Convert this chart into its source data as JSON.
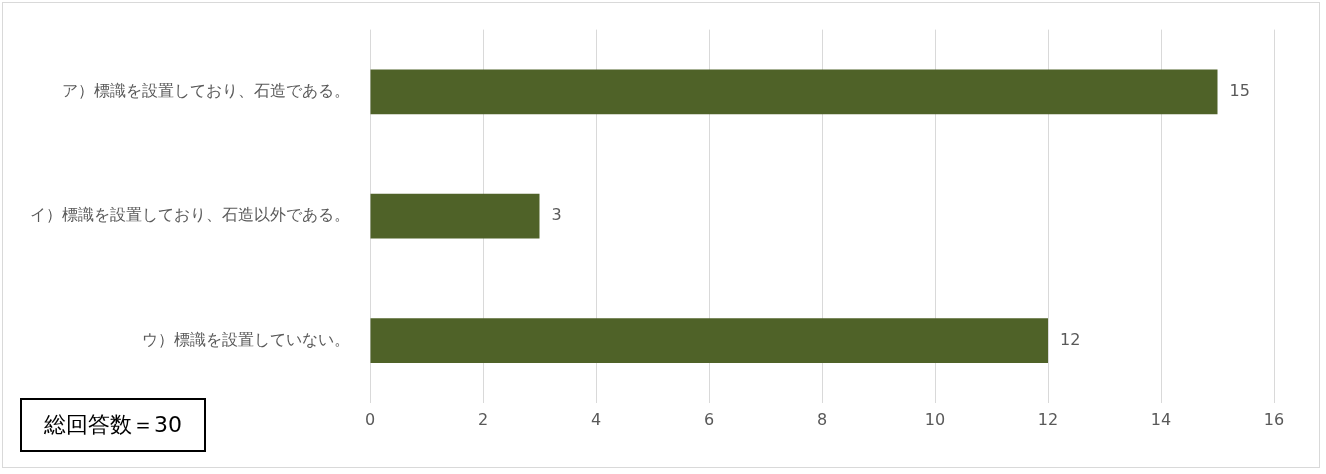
{
  "chart_data": {
    "type": "bar",
    "orientation": "horizontal",
    "categories": [
      "ア）標識を設置しており、石造である。",
      "イ）標識を設置しており、石造以外である。",
      "ウ）標識を設置していない。"
    ],
    "values": [
      15,
      3,
      12
    ],
    "color": "#4f6228",
    "xlim": [
      0,
      16
    ],
    "xticks": [
      0,
      2,
      4,
      6,
      8,
      10,
      12,
      14,
      16
    ],
    "grid": "x",
    "data_labels": true,
    "legend": false,
    "annotations": [
      "総回答数＝30"
    ]
  }
}
